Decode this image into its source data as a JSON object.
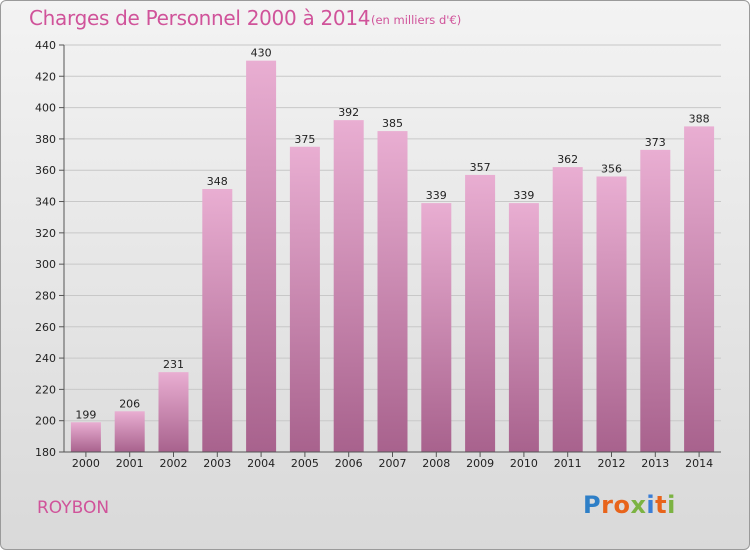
{
  "header": {
    "title": "Charges de Personnel 2000 à 2014",
    "subtitle": "(en milliers d'€)"
  },
  "footer": {
    "commune": "ROYBON",
    "logo": {
      "text": "Proxiti",
      "letter_colors": [
        "#2e7fc7",
        "#e8641b",
        "#e8641b",
        "#7cb342",
        "#3a7dd6",
        "#e8641b",
        "#7cb342"
      ]
    }
  },
  "colors": {
    "title": "#d0539a",
    "bar_top": "#e9aed2",
    "bar_bottom": "#a8628d",
    "grid": "#c8c8c8"
  },
  "chart_data": {
    "type": "bar",
    "title": "Charges de Personnel 2000 à 2014",
    "subtitle": "(en milliers d'€)",
    "categories": [
      "2000",
      "2001",
      "2002",
      "2003",
      "2004",
      "2005",
      "2006",
      "2007",
      "2008",
      "2009",
      "2010",
      "2011",
      "2012",
      "2013",
      "2014"
    ],
    "values": [
      199,
      206,
      231,
      348,
      430,
      375,
      392,
      385,
      339,
      357,
      339,
      362,
      356,
      373,
      388
    ],
    "yticks": [
      180,
      200,
      220,
      240,
      260,
      280,
      300,
      320,
      340,
      360,
      380,
      400,
      420,
      440
    ],
    "ylim": [
      180,
      440
    ],
    "grid": true,
    "xlabel": "",
    "ylabel": ""
  }
}
